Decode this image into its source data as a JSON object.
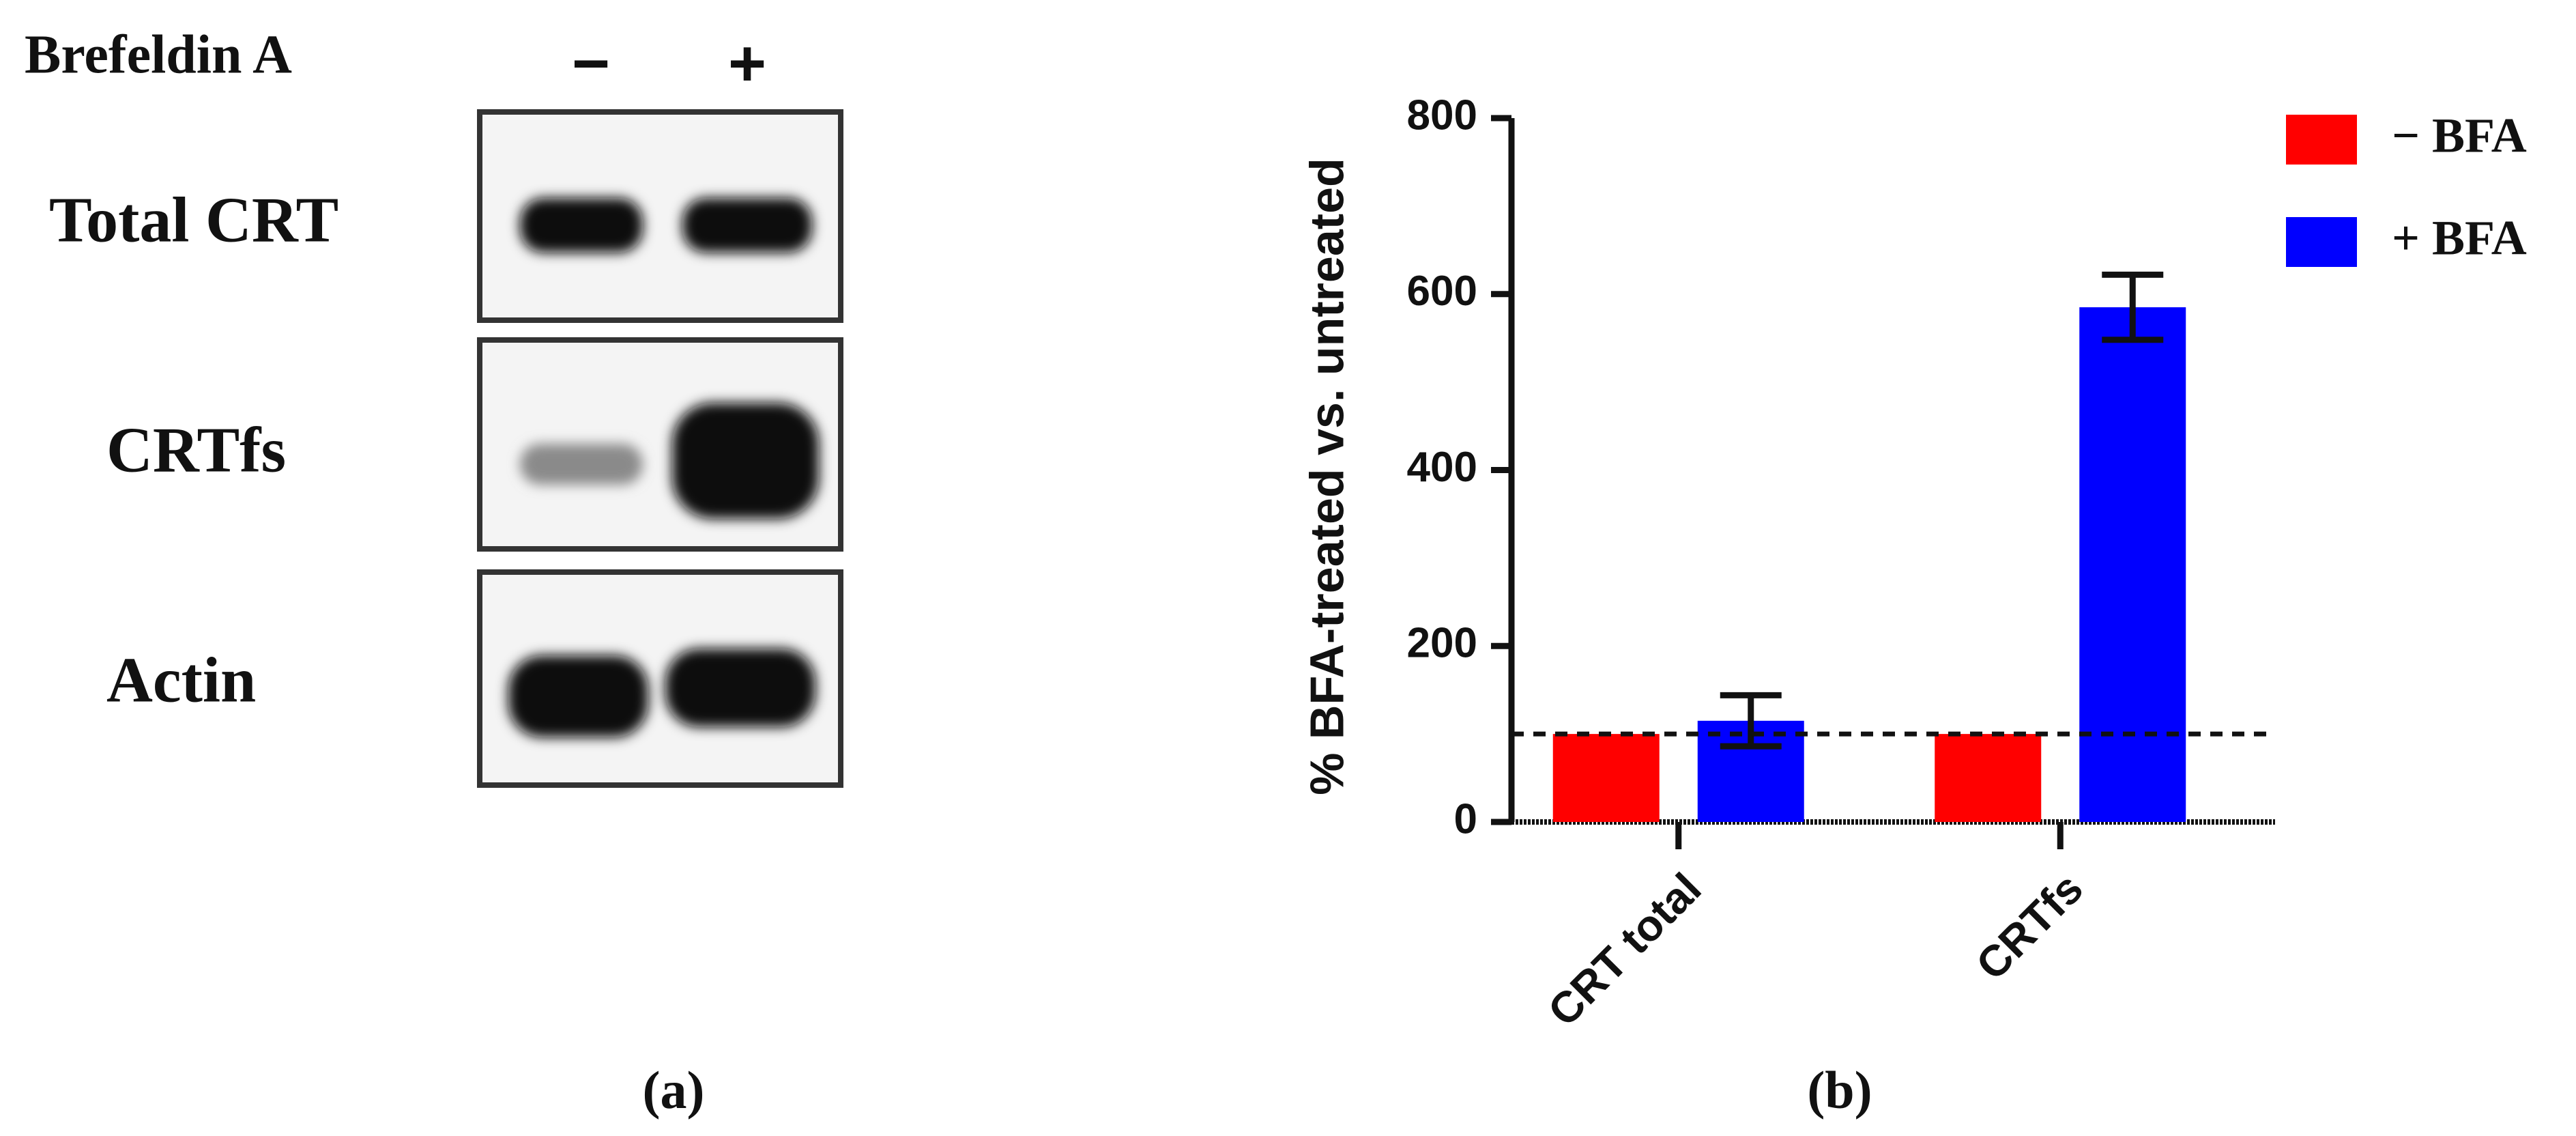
{
  "blot": {
    "header": "Brefeldin A",
    "lanes": [
      "−",
      "+"
    ],
    "rows": [
      "Total CRT",
      "CRTfs",
      "Actin"
    ],
    "caption": "(a)"
  },
  "chart_data": {
    "type": "bar",
    "ylabel": "% BFA-treated vs. untreated",
    "caption": "(b)",
    "categories": [
      "CRT total",
      "CRTfs"
    ],
    "series": [
      {
        "name": "− BFA",
        "color": "#ff0000",
        "values": [
          100,
          100
        ]
      },
      {
        "name": "+ BFA",
        "color": "#0000ff",
        "values": [
          115,
          585
        ],
        "errors": [
          29,
          37
        ]
      }
    ],
    "ylim": [
      0,
      800
    ],
    "yticks": [
      0,
      200,
      400,
      600,
      800
    ],
    "reference_line": 100,
    "legend": "top-right"
  }
}
